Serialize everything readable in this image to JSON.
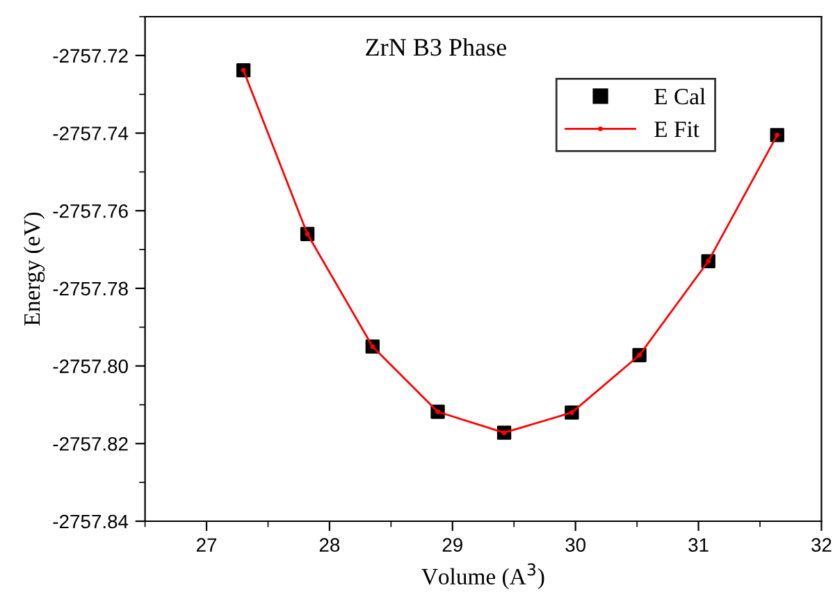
{
  "chart_data": {
    "type": "line",
    "title": "ZrN B3 Phase",
    "xlabel": "Volume (A$^{3}$)",
    "ylabel": "Energy (eV)",
    "x": [
      27.3,
      27.82,
      28.35,
      28.88,
      29.42,
      29.97,
      30.52,
      31.08,
      31.64
    ],
    "series": [
      {
        "name": "E Cal",
        "type": "scatter",
        "color": "#000000",
        "marker": "square",
        "values": [
          -2757.7238,
          -2757.766,
          -2757.795,
          -2757.8118,
          -2757.8172,
          -2757.812,
          -2757.7972,
          -2757.773,
          -2757.7405
        ]
      },
      {
        "name": "E Fit",
        "type": "line",
        "color": "#ff0000",
        "marker": "circle",
        "line_style": "solid",
        "values": [
          -2757.7238,
          -2757.766,
          -2757.795,
          -2757.8118,
          -2757.8172,
          -2757.812,
          -2757.7972,
          -2757.773,
          -2757.7405
        ]
      }
    ],
    "xlim": [
      26.5,
      32
    ],
    "xticks": [
      27,
      28,
      29,
      30,
      31,
      32
    ],
    "ylim": [
      -2757.84,
      -2757.71
    ],
    "yticks": [
      {
        "value": -2757.84,
        "label": "-2757.84"
      },
      {
        "value": -2757.82,
        "label": "-2757.82"
      },
      {
        "value": -2757.8,
        "label": "-2757.80"
      },
      {
        "value": -2757.78,
        "label": "-2757.78"
      },
      {
        "value": -2757.76,
        "label": "-2757.76"
      },
      {
        "value": -2757.74,
        "label": "-2757.74"
      },
      {
        "value": -2757.72,
        "label": "-2757.72"
      }
    ],
    "grid": false,
    "legend": "top right"
  }
}
